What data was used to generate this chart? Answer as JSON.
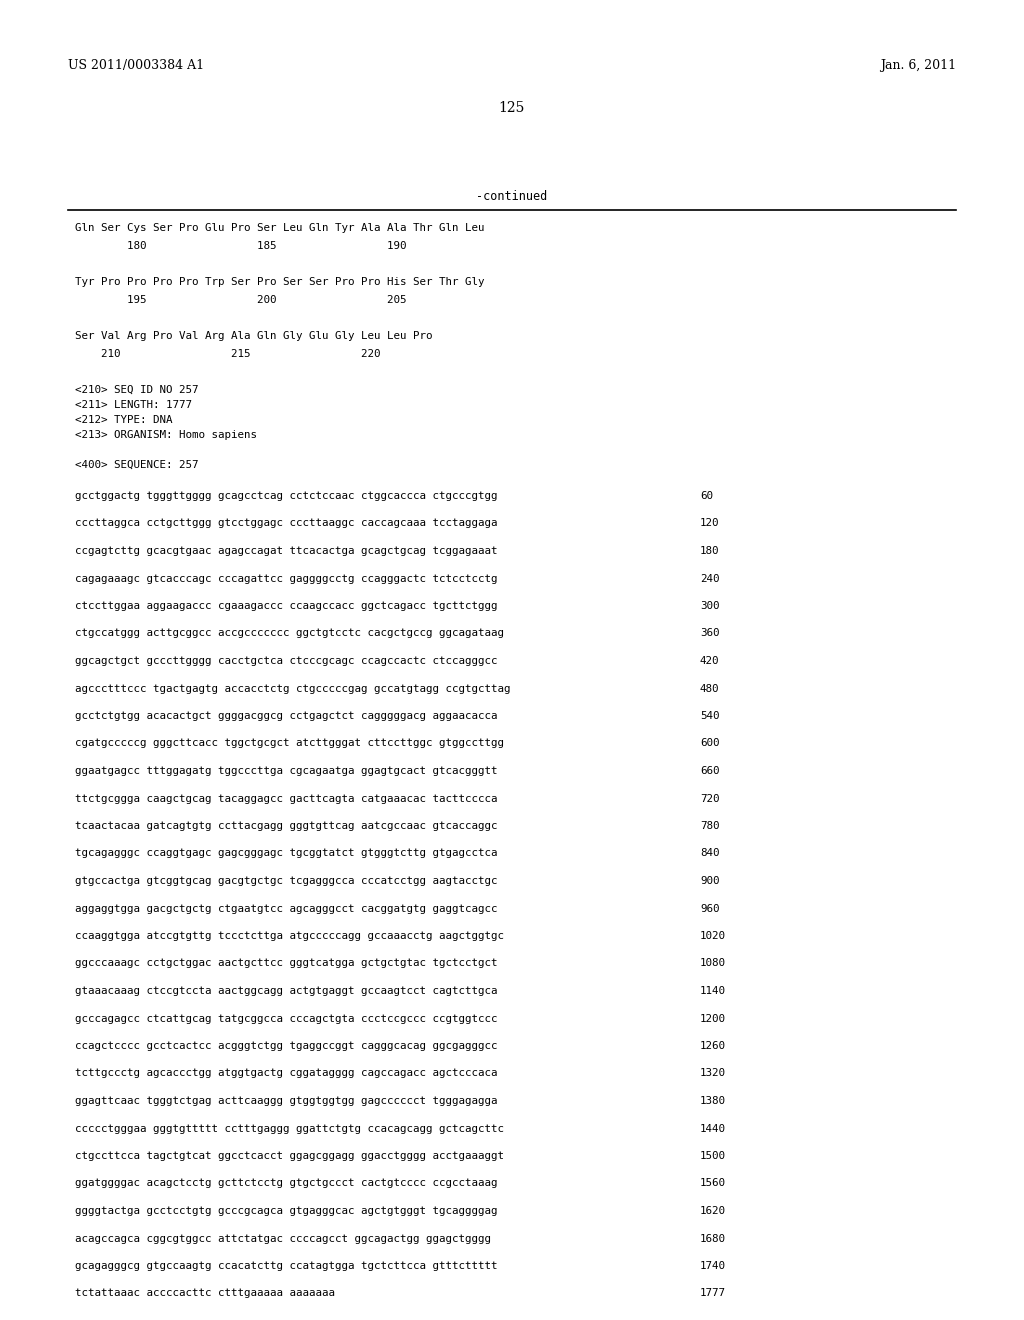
{
  "background_color": "#ffffff",
  "header_left": "US 2011/0003384 A1",
  "header_right": "Jan. 6, 2011",
  "page_number": "125",
  "continued_text": "-continued",
  "amino_acid_lines": [
    "Gln Ser Cys Ser Pro Glu Pro Ser Leu Gln Tyr Ala Ala Thr Gln Leu",
    "        180                 185                 190",
    "",
    "Tyr Pro Pro Pro Pro Trp Ser Pro Ser Ser Pro Pro His Ser Thr Gly",
    "        195                 200                 205",
    "",
    "Ser Val Arg Pro Val Arg Ala Gln Gly Glu Gly Leu Leu Pro",
    "    210                 215                 220"
  ],
  "meta_lines": [
    "<210> SEQ ID NO 257",
    "<211> LENGTH: 1777",
    "<212> TYPE: DNA",
    "<213> ORGANISM: Homo sapiens",
    "",
    "<400> SEQUENCE: 257"
  ],
  "sequence_lines": [
    [
      "gcctggactg tgggttgggg gcagcctcag cctctccaac ctggcaccca ctgcccgtgg",
      "60"
    ],
    [
      "cccttaggca cctgcttggg gtcctggagc cccttaaggc caccagcaaa tcctaggaga",
      "120"
    ],
    [
      "ccgagtcttg gcacgtgaac agagccagat ttcacactga gcagctgcag tcggagaaat",
      "180"
    ],
    [
      "cagagaaagc gtcacccagc cccagattcc gaggggcctg ccagggactc tctcctcctg",
      "240"
    ],
    [
      "ctccttggaa aggaagaccc cgaaagaccc ccaagccacc ggctcagacc tgcttctggg",
      "300"
    ],
    [
      "ctgccatggg acttgcggcc accgccccccc ggctgtcctc cacgctgccg ggcagataag",
      "360"
    ],
    [
      "ggcagctgct gcccttgggg cacctgctca ctcccgcagc ccagccactc ctccagggcc",
      "420"
    ],
    [
      "agccctttccc tgactgagtg accacctctg ctgcccccgag gccatgtagg ccgtgcttag",
      "480"
    ],
    [
      "gcctctgtgg acacactgct ggggacggcg cctgagctct cagggggacg aggaacacca",
      "540"
    ],
    [
      "cgatgcccccg gggcttcacc tggctgcgct atcttgggat cttccttggc gtggccttgg",
      "600"
    ],
    [
      "ggaatgagcc tttggagatg tggcccttga cgcagaatga ggagtgcact gtcacgggtt",
      "660"
    ],
    [
      "ttctgcggga caagctgcag tacaggagcc gacttcagta catgaaacac tacttcccca",
      "720"
    ],
    [
      "tcaactacaa gatcagtgtg ccttacgagg gggtgttcag aatcgccaac gtcaccaggc",
      "780"
    ],
    [
      "tgcagagggc ccaggtgagc gagcgggagc tgcggtatct gtgggtcttg gtgagcctca",
      "840"
    ],
    [
      "gtgccactga gtcggtgcag gacgtgctgc tcgagggcca cccatcctgg aagtacctgc",
      "900"
    ],
    [
      "aggaggtgga gacgctgctg ctgaatgtcc agcagggcct cacggatgtg gaggtcagcc",
      "960"
    ],
    [
      "ccaaggtgga atccgtgttg tccctcttga atgcccccagg gccaaacctg aagctggtgc",
      "1020"
    ],
    [
      "ggcccaaagc cctgctggac aactgcttcc gggtcatgga gctgctgtac tgctcctgct",
      "1080"
    ],
    [
      "gtaaacaaag ctccgtccta aactggcagg actgtgaggt gccaagtcct cagtcttgca",
      "1140"
    ],
    [
      "gcccagagcc ctcattgcag tatgcggcca cccagctgta ccctccgccc ccgtggtccc",
      "1200"
    ],
    [
      "ccagctcccc gcctcactcc acgggtctgg tgaggccggt cagggcacag ggcgagggcc",
      "1260"
    ],
    [
      "tcttgccctg agcaccctgg atggtgactg cggatagggg cagccagacc agctcccaca",
      "1320"
    ],
    [
      "ggagttcaac tgggtctgag acttcaaggg gtggtggtgg gagcccccct tgggagagga",
      "1380"
    ],
    [
      "ccccctgggaa gggtgttttt cctttgaggg ggattctgtg ccacagcagg gctcagcttc",
      "1440"
    ],
    [
      "ctgccttcca tagctgtcat ggcctcacct ggagcggagg ggacctgggg acctgaaaggt",
      "1500"
    ],
    [
      "ggatggggac acagctcctg gcttctcctg gtgctgccct cactgtcccc ccgcctaaag",
      "1560"
    ],
    [
      "ggggtactga gcctcctgtg gcccgcagca gtgagggcac agctgtgggt tgcaggggag",
      "1620"
    ],
    [
      "acagccagca cggcgtggcc attctatgac ccccagcct ggcagactgg ggagctgggg",
      "1680"
    ],
    [
      "gcagagggcg gtgccaagtg ccacatcttg ccatagtgga tgctcttcca gtttcttttt",
      "1740"
    ],
    [
      "tctattaaac accccacttc ctttgaaaaa aaaaaaa",
      "1777"
    ]
  ]
}
